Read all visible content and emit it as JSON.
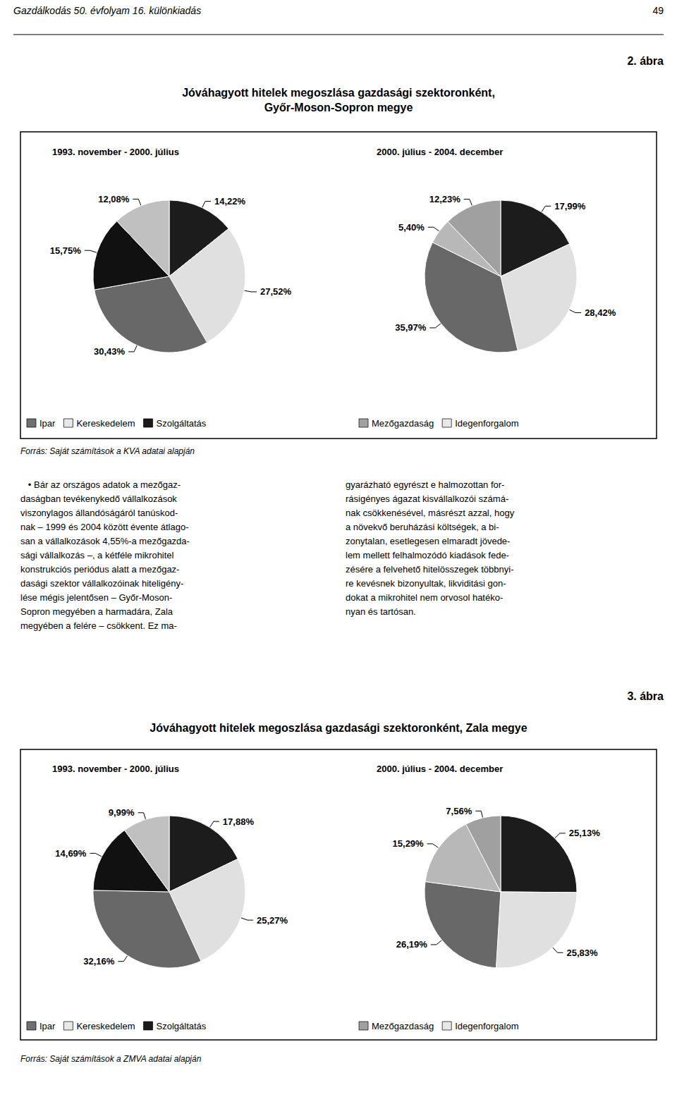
{
  "page_header": "Gazdálkodás 50. évfolyam 16. különkiadás",
  "page_number": "49",
  "body_text_left": "   • Bár az országos adatok a mezőgaz-\ndaságban tevékenykedő vállalkozások\nviszonylagos állandóságáról tanúskod-\nnak – 1999 és 2004 között évente átlago-\nsan a vállalkozások 4,55%-a mezőgazda-\nsági vállalkozás –, a kétféle mikrohitel\nkonstrukciós periódus alatt a mezőgaz-\ndasági szektor vállalkozóinak hiteligény-\nlése mégis jelentősen – Győr-Moson-\nSopron megyében a harmadára, Zala\nmegyében a felére – csökkent. Ez ma-",
  "body_text_right": "gyarázható egyrészt e halmozottan for-\nrásigényes ágazat kisvállalkozói számá-\nnak csökkenésével, másrészt azzal, hogy\na növekvő beruházási költségek, a bi-\nzonytalan, esetlegesen elmaradt jövede-\nlem mellett felhalmozódó kiadások fede-\nzésére a felvehető hitelösszegek többnyi-\nre kevésnek bizonyultak, likviditási gon-\ndokat a mikrohitel nem orvosol hatéko-\nnyan és tartósan.",
  "chart_data": [
    {
      "type": "pie",
      "figure_label": "2. ábra",
      "title": "Jóváhagyott hitelek megoszlása gazdasági szektoronként,\nGyőr-Moson-Sopron megye",
      "source": "Forrás: Saját számítások a KVA adatai alapján",
      "subtitle": "1993. november - 2000. július",
      "values": [
        14.22,
        27.52,
        30.43,
        15.75,
        12.08
      ],
      "value_labels": [
        "14,22%",
        "27,52%",
        "30,43%",
        "15,75%",
        "12,08%"
      ],
      "colors": [
        "#1c1c1c",
        "#e0e0e0",
        "#686868",
        "#111111",
        "#c0c0c0"
      ],
      "data_labels": true,
      "legend": "lower left",
      "legend_labels": [
        "Ipar",
        "Kereskedelem",
        "Szolgáltatás"
      ],
      "legend_colors": [
        "#707070",
        "#e8e8e8",
        "#1a1a1a"
      ]
    },
    {
      "type": "pie",
      "subtitle": "2000. július - 2004. december",
      "values": [
        17.99,
        28.42,
        35.97,
        5.4,
        12.23
      ],
      "value_labels": [
        "17,99%",
        "28,42%",
        "35,97%",
        "5,40%",
        "12,23%"
      ],
      "colors": [
        "#1c1c1c",
        "#e0e0e0",
        "#686868",
        "#b8b8b8",
        "#a0a0a0"
      ],
      "data_labels": true,
      "legend": "lower left",
      "legend_labels": [
        "Mezőgazdaság",
        "Idegenforgalom"
      ],
      "legend_colors": [
        "#a0a0a0",
        "#e8e8e8"
      ]
    },
    {
      "type": "pie",
      "figure_label": "3. ábra",
      "title": "Jóváhagyott hitelek megoszlása gazdasági szektoronként, Zala megye",
      "source": "Forrás: Saját számítások a ZMVA adatai alapján",
      "subtitle": "1993. november - 2000. július",
      "values": [
        17.88,
        25.27,
        32.16,
        14.69,
        9.99
      ],
      "value_labels": [
        "17,88%",
        "25,27%",
        "32,16%",
        "14,69%",
        "9,99%"
      ],
      "colors": [
        "#1c1c1c",
        "#e0e0e0",
        "#686868",
        "#111111",
        "#c0c0c0"
      ],
      "data_labels": true,
      "legend": "lower left",
      "legend_labels": [
        "Ipar",
        "Kereskedelem",
        "Szolgáltatás"
      ],
      "legend_colors": [
        "#707070",
        "#e8e8e8",
        "#1a1a1a"
      ]
    },
    {
      "type": "pie",
      "subtitle": "2000. július - 2004. december",
      "values": [
        25.13,
        25.83,
        26.19,
        15.29,
        7.56
      ],
      "value_labels": [
        "25,13%",
        "25,83%",
        "26,19%",
        "15,29%",
        "7,56%"
      ],
      "colors": [
        "#1c1c1c",
        "#e0e0e0",
        "#686868",
        "#b8b8b8",
        "#a0a0a0"
      ],
      "data_labels": true,
      "legend": "lower left",
      "legend_labels": [
        "Mezőgazdaság",
        "Idegenforgalom"
      ],
      "legend_colors": [
        "#a0a0a0",
        "#e8e8e8"
      ]
    }
  ]
}
